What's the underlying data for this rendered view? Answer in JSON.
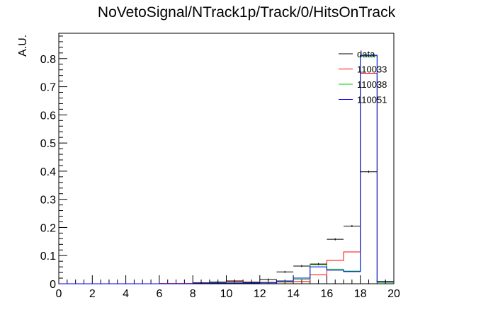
{
  "chart_data": {
    "type": "step-histogram",
    "title": "NoVetoSignal/NTrack1p/Track/0/HitsOnTrack",
    "xlabel": "",
    "ylabel": "A.U.",
    "xlim": [
      0,
      20
    ],
    "ylim": [
      0,
      0.89
    ],
    "x_ticks": [
      "0",
      "2",
      "4",
      "6",
      "8",
      "10",
      "12",
      "14",
      "16",
      "18",
      "20"
    ],
    "y_ticks": [
      "0",
      "0.1",
      "0.2",
      "0.3",
      "0.4",
      "0.5",
      "0.6",
      "0.7",
      "0.8"
    ],
    "bin_edges": [
      0,
      1,
      2,
      3,
      4,
      5,
      6,
      7,
      8,
      9,
      10,
      11,
      12,
      13,
      14,
      15,
      16,
      17,
      18,
      19,
      20
    ],
    "legend_position": "top-right",
    "series": [
      {
        "name": "data",
        "color": "#000000",
        "style": "points",
        "values": [
          0,
          0,
          0,
          0,
          0,
          0,
          0,
          0,
          0.003,
          0.006,
          0.01,
          0.005,
          0.015,
          0.042,
          0.063,
          0.07,
          0.158,
          0.205,
          0.398,
          0.008
        ]
      },
      {
        "name": "110033",
        "color": "#ff0000",
        "style": "step",
        "values": [
          0,
          0,
          0,
          0,
          0,
          0,
          0.001,
          0.001,
          0.003,
          0.004,
          0.007,
          0.006,
          0.005,
          0.006,
          0.008,
          0.032,
          0.083,
          0.113,
          0.748,
          0.006
        ]
      },
      {
        "name": "110038",
        "color": "#00cc00",
        "style": "step",
        "values": [
          0,
          0,
          0,
          0,
          0,
          0,
          0,
          0,
          0.002,
          0.003,
          0.003,
          0.003,
          0.004,
          0.008,
          0.016,
          0.068,
          0.052,
          0.045,
          0.81,
          0.005
        ]
      },
      {
        "name": "110051",
        "color": "#0000ff",
        "style": "step",
        "values": [
          0,
          0,
          0,
          0,
          0,
          0,
          0,
          0,
          0.001,
          0.002,
          0.002,
          0.002,
          0.003,
          0.01,
          0.02,
          0.06,
          0.048,
          0.043,
          0.812,
          0.007
        ]
      }
    ]
  }
}
